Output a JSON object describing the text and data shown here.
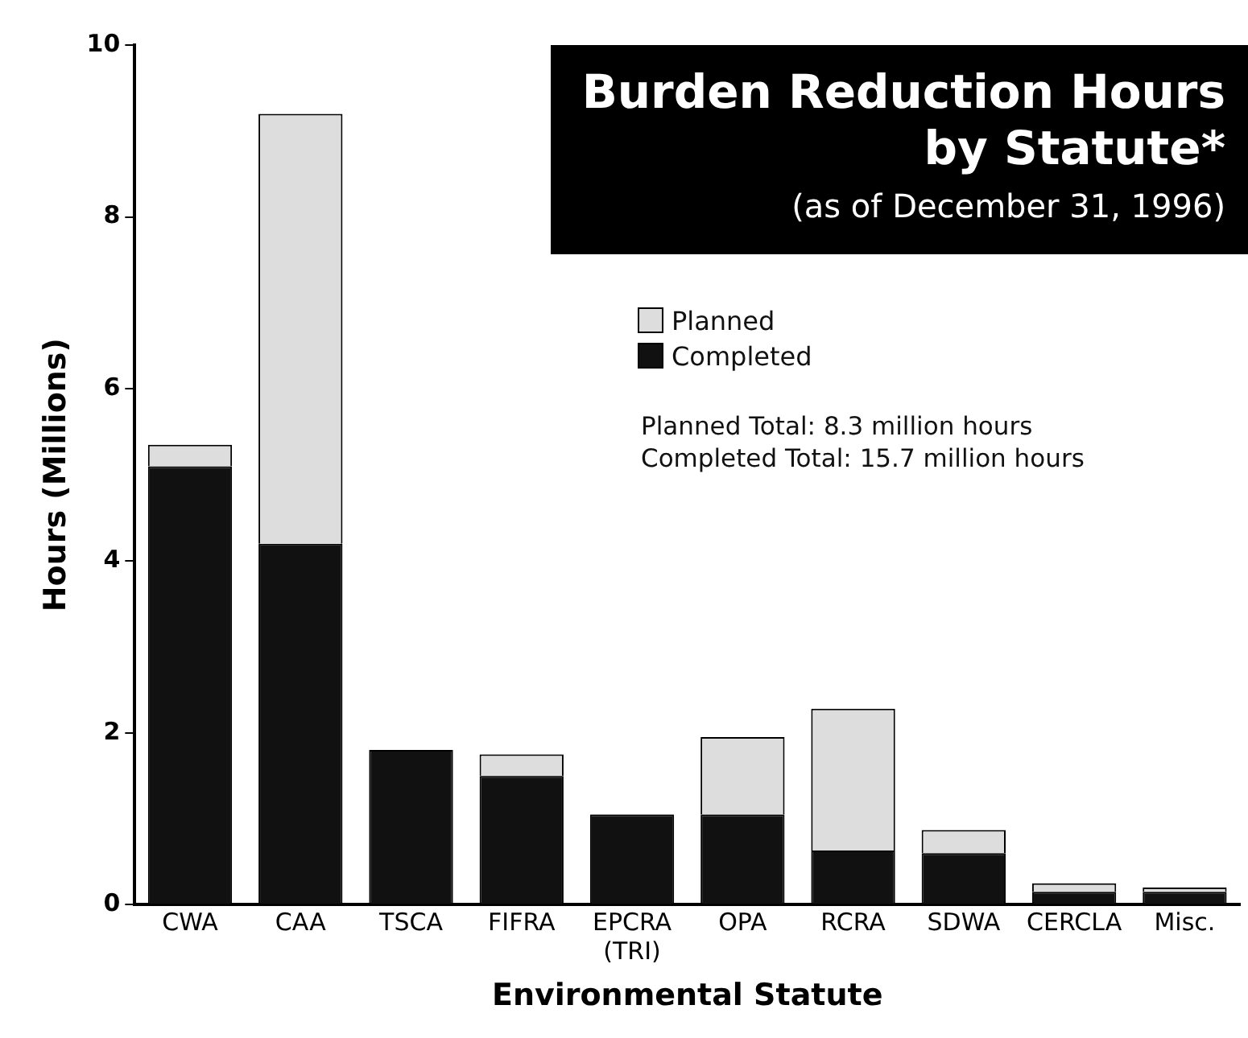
{
  "chart_data": {
    "type": "bar",
    "stacked": true,
    "title": "Burden Reduction Hours by Statute*",
    "subtitle": "(as of December 31, 1996)",
    "xlabel": "Environmental Statute",
    "ylabel": "Hours (Millions)",
    "categories": [
      "CWA",
      "CAA",
      "TSCA",
      "FIFRA",
      "EPCRA (TRI)",
      "OPA",
      "RCRA",
      "SDWA",
      "CERCLA",
      "Misc."
    ],
    "series": [
      {
        "name": "Completed",
        "color": "#111111",
        "values": [
          5.1,
          4.2,
          1.8,
          1.5,
          1.05,
          1.05,
          0.63,
          0.6,
          0.15,
          0.15
        ]
      },
      {
        "name": "Planned",
        "color": "#dddddd",
        "values": [
          0.25,
          5.0,
          0,
          0.25,
          0,
          0.9,
          1.65,
          0.27,
          0.1,
          0.05
        ]
      }
    ],
    "ylim": [
      0,
      10
    ],
    "yticks": [
      0,
      2,
      4,
      6,
      8,
      10
    ],
    "grid": false,
    "legend": "top right",
    "annotations": [
      "Planned Total: 8.3 million hours",
      "Completed Total: 15.7 million hours"
    ]
  }
}
